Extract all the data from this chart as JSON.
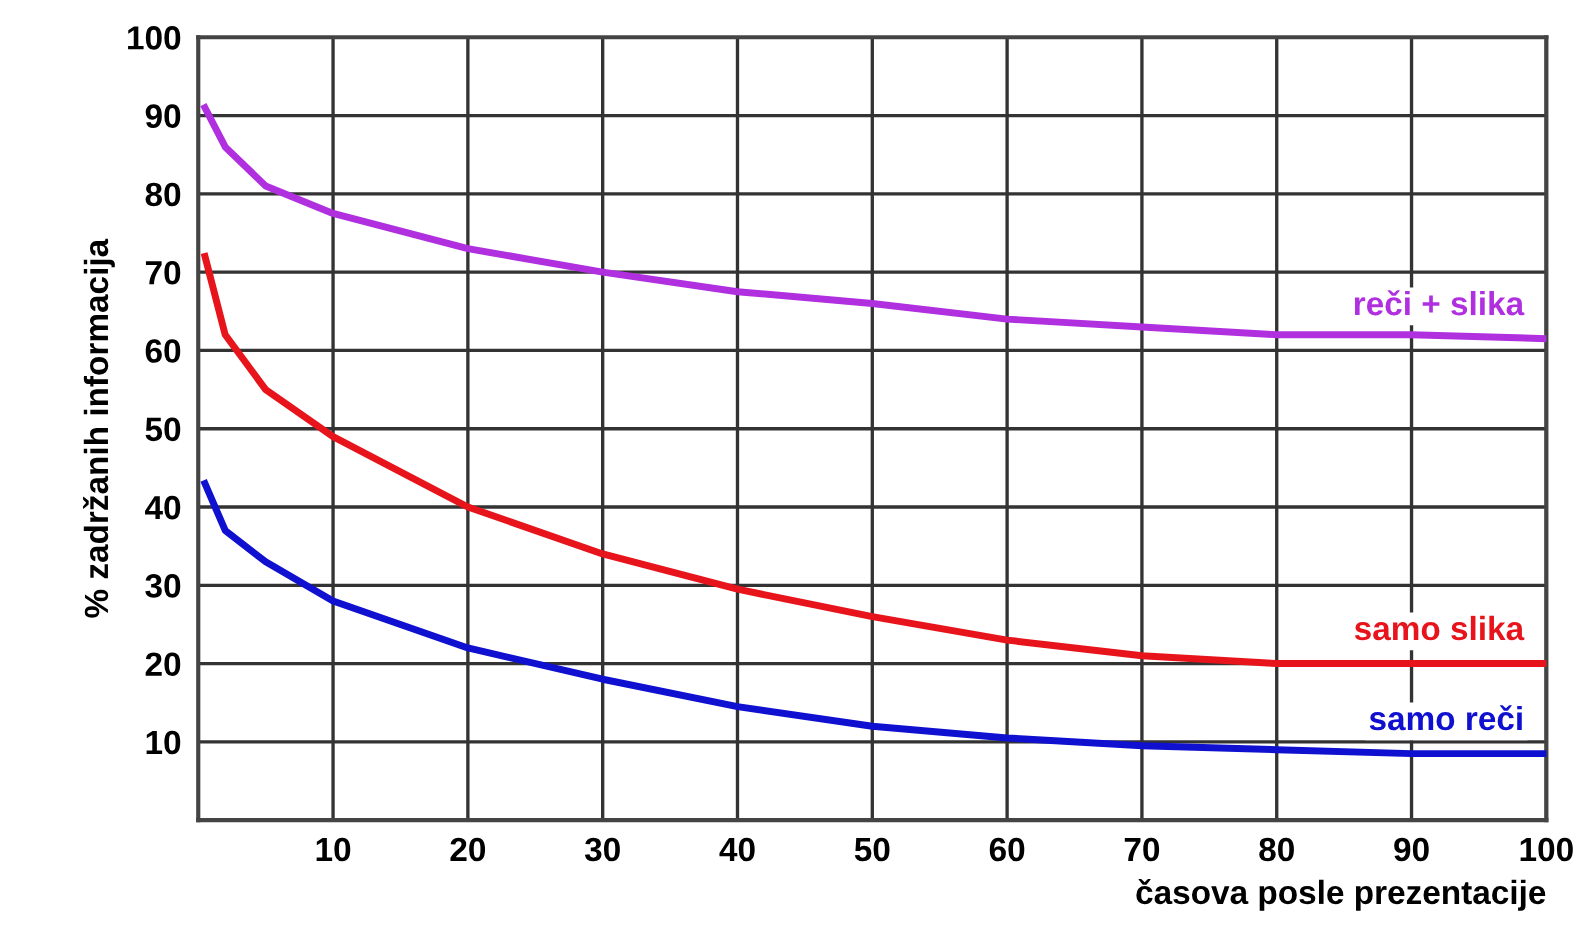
{
  "chart_data": {
    "type": "line",
    "xlabel": "časova posle prezentacije",
    "ylabel": "% zadržanih informacija",
    "xlim": [
      0,
      100
    ],
    "xticks": [
      {
        "value": 0,
        "label": null
      },
      10,
      20,
      30,
      40,
      50,
      60,
      70,
      80,
      90,
      100
    ],
    "ylim": [
      0,
      100
    ],
    "yticks": [
      {
        "value": 0,
        "label": null
      },
      10,
      20,
      30,
      40,
      50,
      60,
      70,
      80,
      90,
      100
    ],
    "grid": true,
    "legend": false,
    "marker": "none",
    "line_style": "solid",
    "series": [
      {
        "name": "reči + slika",
        "color": "#b030e0",
        "x": [
          0.5,
          2,
          5,
          10,
          20,
          30,
          40,
          50,
          60,
          70,
          80,
          90,
          100
        ],
        "values": [
          91,
          86,
          81,
          77.5,
          73,
          70,
          67.5,
          66,
          64,
          63,
          62,
          62,
          61.5
        ]
      },
      {
        "name": "samo slika",
        "color": "#e8141c",
        "x": [
          0.5,
          2,
          5,
          10,
          20,
          30,
          40,
          50,
          60,
          70,
          80,
          90,
          100
        ],
        "values": [
          72,
          62,
          55,
          49,
          40,
          34,
          29.5,
          26,
          23,
          21,
          20,
          20,
          20
        ]
      },
      {
        "name": "samo reči",
        "color": "#1010d0",
        "x": [
          0.5,
          2,
          5,
          10,
          20,
          30,
          40,
          50,
          60,
          70,
          80,
          90,
          100
        ],
        "values": [
          43,
          37,
          33,
          28,
          22,
          18,
          14.5,
          12,
          10.5,
          9.5,
          9,
          8.5,
          8.5
        ]
      }
    ]
  }
}
